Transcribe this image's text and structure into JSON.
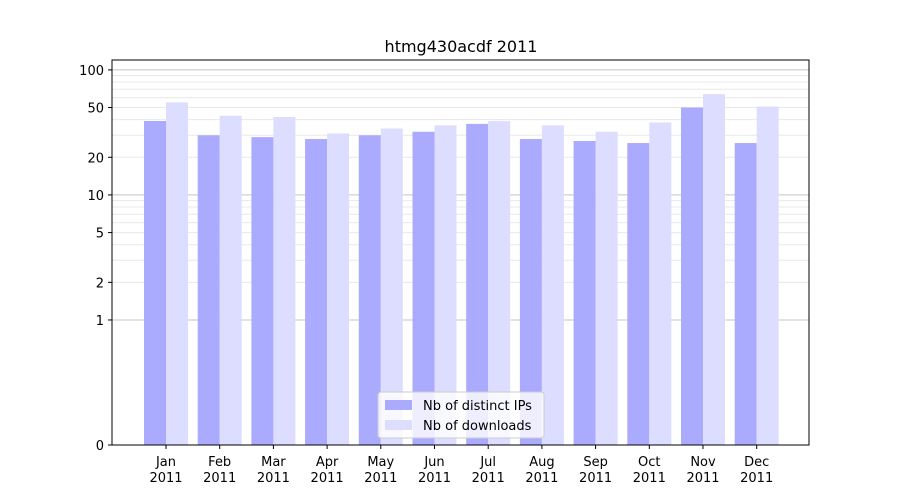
{
  "chart_data": {
    "type": "bar",
    "title": "htmg430acdf 2011",
    "xlabel": "",
    "ylabel": "",
    "yscale": "symlog",
    "ylim": [
      0,
      120
    ],
    "yticks": [
      0,
      1,
      2,
      5,
      10,
      20,
      50,
      100
    ],
    "ytick_labels": [
      "0",
      "1",
      "2",
      "5",
      "10",
      "20",
      "50",
      "100"
    ],
    "categories": [
      "Jan",
      "Feb",
      "Mar",
      "Apr",
      "May",
      "Jun",
      "Jul",
      "Aug",
      "Sep",
      "Oct",
      "Nov",
      "Dec"
    ],
    "category_year": "2011",
    "series": [
      {
        "name": "Nb of distinct IPs",
        "color": "#aaaaff",
        "values": [
          39,
          30,
          29,
          28,
          30,
          32,
          37,
          28,
          27,
          26,
          50,
          26
        ]
      },
      {
        "name": "Nb of downloads",
        "color": "#ddddff",
        "values": [
          55,
          43,
          42,
          31,
          34,
          36,
          39,
          36,
          32,
          38,
          64,
          51
        ]
      }
    ],
    "legend_position": "lower center",
    "grid": true
  }
}
